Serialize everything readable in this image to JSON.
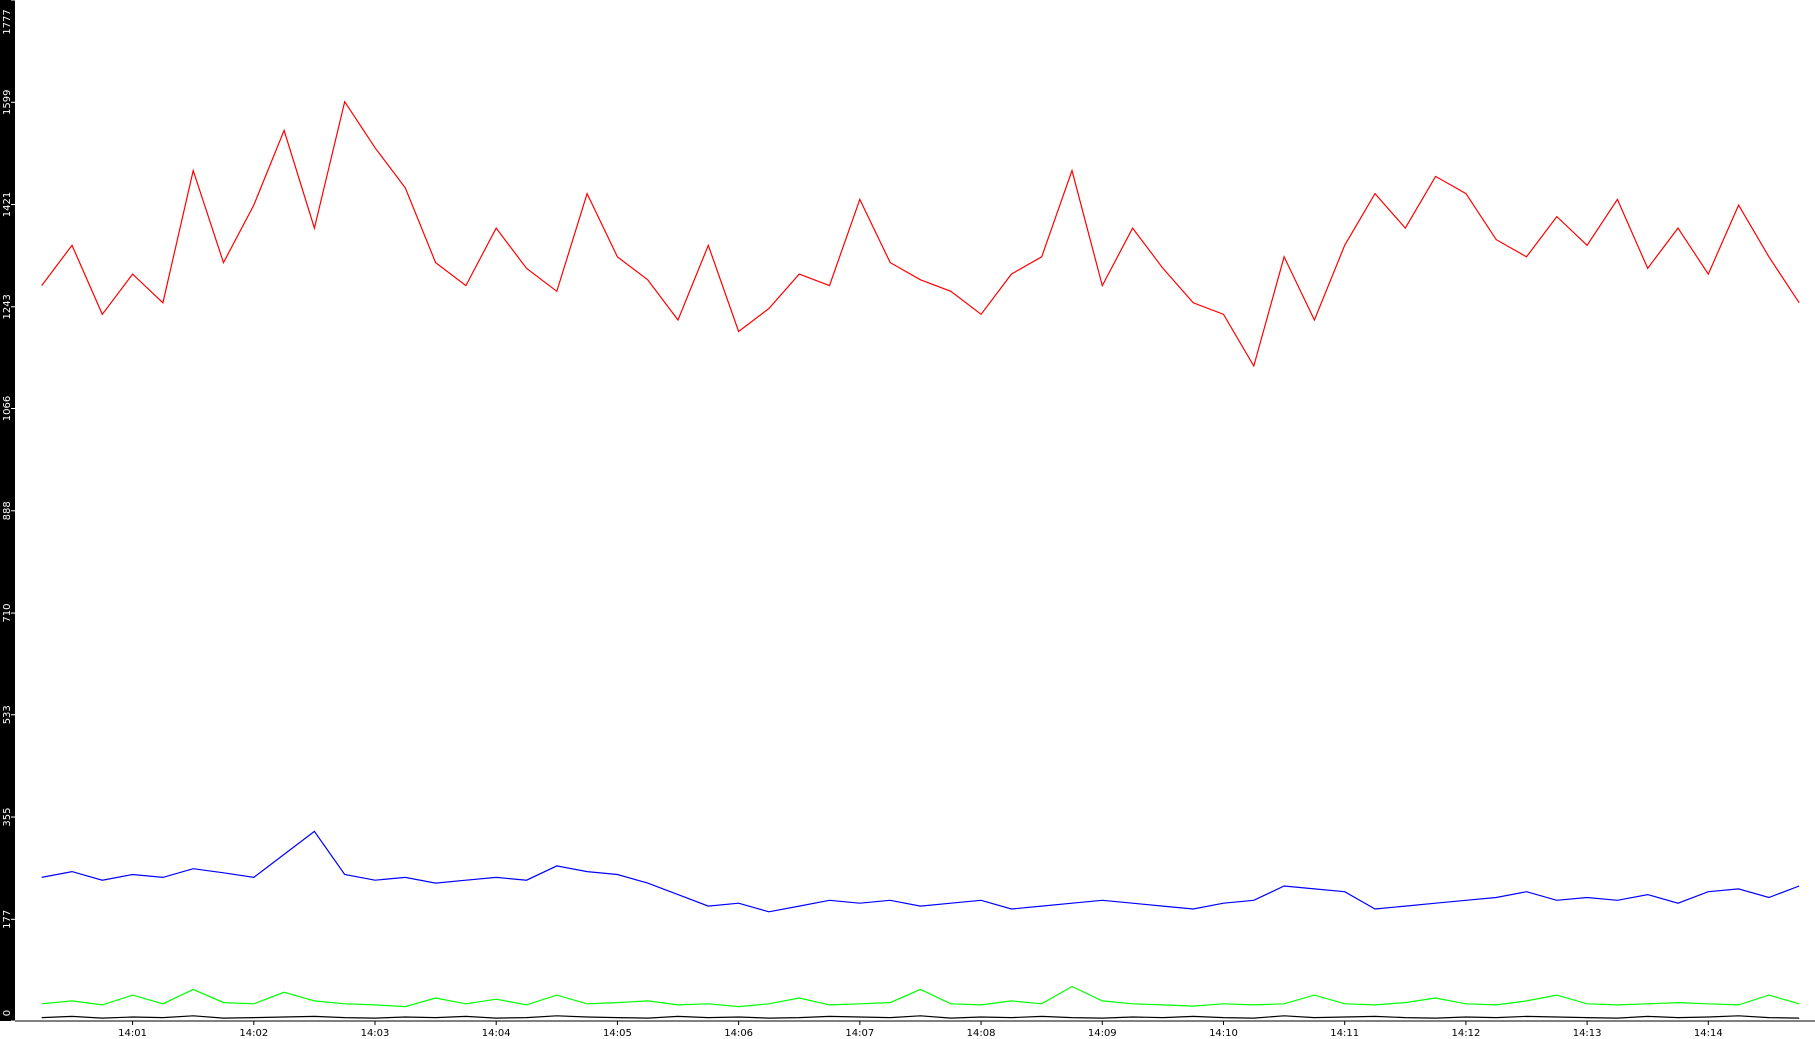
{
  "chart_data": {
    "type": "line",
    "x": [
      0.25,
      0.5,
      0.75,
      1,
      1.25,
      1.5,
      1.75,
      2,
      2.25,
      2.5,
      2.75,
      3,
      3.25,
      3.5,
      3.75,
      4,
      4.25,
      4.5,
      4.75,
      5,
      5.25,
      5.5,
      5.75,
      6,
      6.25,
      6.5,
      6.75,
      7,
      7.25,
      7.5,
      7.75,
      8,
      8.25,
      8.5,
      8.75,
      9,
      9.25,
      9.5,
      9.75,
      10,
      10.25,
      10.5,
      10.75,
      11,
      11.25,
      11.5,
      11.75,
      12,
      12.25,
      12.5,
      12.75,
      13,
      13.25,
      13.5,
      13.75,
      14,
      14.25,
      14.5,
      14.75
    ],
    "series": [
      {
        "color": "#ff0000",
        "values": [
          1280,
          1350,
          1230,
          1300,
          1250,
          1480,
          1320,
          1420,
          1550,
          1380,
          1600,
          1520,
          1450,
          1320,
          1280,
          1380,
          1310,
          1270,
          1440,
          1330,
          1290,
          1220,
          1350,
          1200,
          1240,
          1300,
          1280,
          1430,
          1320,
          1290,
          1270,
          1230,
          1300,
          1330,
          1480,
          1280,
          1380,
          1310,
          1250,
          1230,
          1140,
          1330,
          1220,
          1350,
          1440,
          1380,
          1470,
          1440,
          1360,
          1330,
          1400,
          1350,
          1430,
          1310,
          1380,
          1300,
          1420,
          1330,
          1250
        ]
      },
      {
        "color": "#0000ff",
        "values": [
          250,
          260,
          245,
          255,
          250,
          265,
          258,
          250,
          290,
          330,
          255,
          245,
          250,
          240,
          245,
          250,
          245,
          270,
          260,
          255,
          240,
          220,
          200,
          205,
          190,
          200,
          210,
          205,
          210,
          200,
          205,
          210,
          195,
          200,
          205,
          210,
          205,
          200,
          195,
          205,
          210,
          235,
          230,
          225,
          195,
          200,
          205,
          210,
          215,
          225,
          210,
          215,
          210,
          220,
          205,
          225,
          230,
          215,
          235
        ]
      },
      {
        "color": "#00ff00",
        "values": [
          30,
          35,
          28,
          45,
          30,
          55,
          32,
          30,
          50,
          35,
          30,
          28,
          25,
          40,
          30,
          38,
          28,
          45,
          30,
          32,
          35,
          28,
          30,
          25,
          30,
          40,
          28,
          30,
          32,
          55,
          30,
          28,
          35,
          30,
          60,
          35,
          30,
          28,
          26,
          30,
          28,
          30,
          45,
          30,
          28,
          32,
          40,
          30,
          28,
          35,
          45,
          30,
          28,
          30,
          32,
          30,
          28,
          45,
          30
        ]
      },
      {
        "color": "#000000",
        "values": [
          6,
          8,
          5,
          7,
          6,
          9,
          5,
          6,
          7,
          8,
          6,
          5,
          7,
          6,
          8,
          5,
          6,
          9,
          7,
          6,
          5,
          8,
          6,
          7,
          5,
          6,
          8,
          7,
          6,
          9,
          5,
          7,
          6,
          8,
          6,
          5,
          7,
          6,
          8,
          6,
          5,
          9,
          6,
          7,
          8,
          6,
          5,
          7,
          6,
          8,
          7,
          6,
          5,
          8,
          6,
          7,
          9,
          6,
          5
        ]
      }
    ],
    "xlim": [
      0.03,
      14.88
    ],
    "xticks": [
      {
        "value": 1,
        "label": "14:01"
      },
      {
        "value": 2,
        "label": "14:02"
      },
      {
        "value": 3,
        "label": "14:03"
      },
      {
        "value": 4,
        "label": "14:04"
      },
      {
        "value": 5,
        "label": "14:05"
      },
      {
        "value": 6,
        "label": "14:06"
      },
      {
        "value": 7,
        "label": "14:07"
      },
      {
        "value": 8,
        "label": "14:08"
      },
      {
        "value": 9,
        "label": "14:09"
      },
      {
        "value": 10,
        "label": "14:10"
      },
      {
        "value": 11,
        "label": "14:11"
      },
      {
        "value": 12,
        "label": "14:12"
      },
      {
        "value": 13,
        "label": "14:13"
      },
      {
        "value": 14,
        "label": "14:14"
      }
    ],
    "ylim": [
      0,
      1777
    ],
    "yticks": [
      0,
      177,
      355,
      533,
      710,
      888,
      1066,
      1243,
      1421,
      1599,
      1777
    ]
  }
}
